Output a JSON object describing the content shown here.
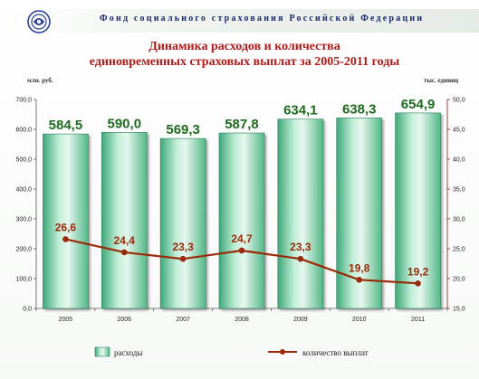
{
  "header": {
    "org_name": "Фонд социального страхования Российской Федерации",
    "title_line1": "Динамика расходов и количества",
    "title_line2": "единовременных страховых выплат за 2005-2011 годы"
  },
  "colors": {
    "bar_fill_light": "#e6f7ee",
    "bar_fill_mid": "#7fd1a9",
    "bar_fill_dark": "#3fa77a",
    "line": "#9a2a0a",
    "bar_label": "#1f6b1f",
    "title": "#b11a1a",
    "org_name": "#1a2a6c"
  },
  "chart_data": {
    "type": "bar+line",
    "categories": [
      "2005",
      "2006",
      "2007",
      "2008",
      "2009",
      "2010",
      "2011"
    ],
    "series": [
      {
        "name": "расходы",
        "type": "bar",
        "axis": "left",
        "values": [
          584.5,
          590.0,
          569.3,
          587.8,
          634.1,
          638.3,
          654.9
        ],
        "labels": [
          "584,5",
          "590,0",
          "569,3",
          "587,8",
          "634,1",
          "638,3",
          "654,9"
        ]
      },
      {
        "name": "количество выплат",
        "type": "line",
        "axis": "right",
        "values": [
          26.6,
          24.4,
          23.3,
          24.7,
          23.3,
          19.8,
          19.2
        ],
        "labels": [
          "26,6",
          "24,4",
          "23,3",
          "24,7",
          "23,3",
          "19,8",
          "19,2"
        ]
      }
    ],
    "left_axis": {
      "unit": "млн. руб.",
      "ylim": [
        0,
        700
      ],
      "ticks": [
        0,
        100,
        200,
        300,
        400,
        500,
        600,
        700
      ],
      "tick_labels": [
        "0,0",
        "100,0",
        "200,0",
        "300,0",
        "400,0",
        "500,0",
        "600,0",
        "700,0"
      ]
    },
    "right_axis": {
      "unit": "тыс. единиц",
      "ylim": [
        15,
        50
      ],
      "ticks": [
        15,
        20,
        25,
        30,
        35,
        40,
        45,
        50
      ],
      "tick_labels": [
        "15,0",
        "20,0",
        "25,0",
        "30,0",
        "35,0",
        "40,0",
        "45,0",
        "50,0"
      ]
    },
    "legend_position": "bottom",
    "grid": false
  }
}
